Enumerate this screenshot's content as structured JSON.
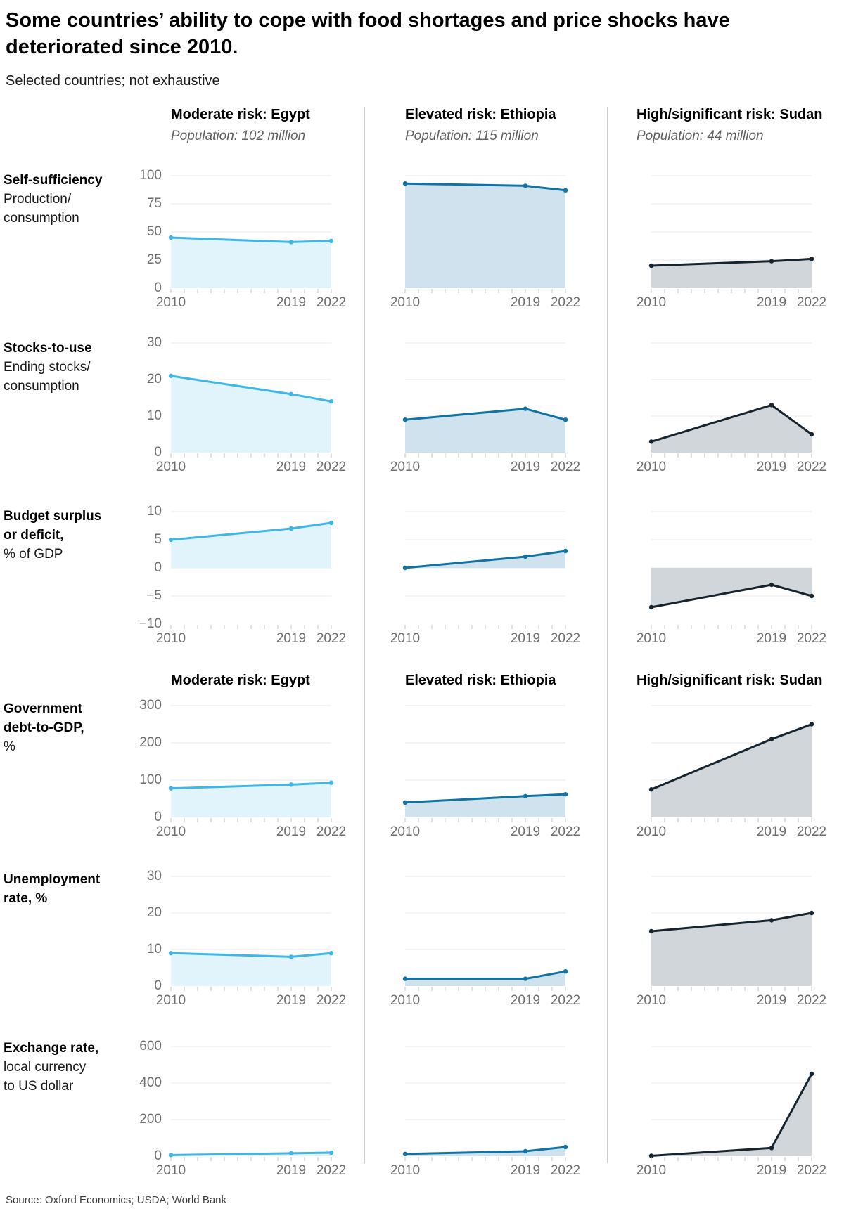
{
  "title": "Some countries’ ability to cope with food shortages and price shocks have deteriorated since 2010.",
  "subtitle": "Selected countries; not exhaustive",
  "source": "Source: Oxford Economics; USDA; World Bank",
  "years": [
    "2010",
    "2019",
    "2022"
  ],
  "palette": {
    "grid": "#e9e9e9",
    "tick": "#c6c6c6",
    "axis_text": "#6e6e6e",
    "separator": "#cccccc",
    "heading": "#000000",
    "population_text": "#606060"
  },
  "columns": [
    {
      "header": "Moderate risk: Egypt",
      "population": "Population: 102 million",
      "line_color": "#3eb6e8",
      "fill_color": "#e1f4fb"
    },
    {
      "header": "Elevated risk: Ethiopia",
      "population": "Population: 115 million",
      "line_color": "#0f74a3",
      "fill_color": "#cfe2ee"
    },
    {
      "header": "High/significant risk: Sudan",
      "population": "Population: 44 million",
      "line_color": "#16242f",
      "fill_color": "#d0d6d9"
    }
  ],
  "chart_data": [
    {
      "type": "area",
      "label_bold_lines": [
        "Self-sufficiency"
      ],
      "label_lines": [
        "Production/",
        "consumption"
      ],
      "x": [
        "2010",
        "2019",
        "2022"
      ],
      "ylim": [
        0,
        100
      ],
      "yticks": [
        0,
        25,
        50,
        75,
        100
      ],
      "series": [
        {
          "name": "Egypt",
          "values": [
            45,
            41,
            42
          ]
        },
        {
          "name": "Ethiopia",
          "values": [
            93,
            91,
            87
          ]
        },
        {
          "name": "Sudan",
          "values": [
            20,
            24,
            26
          ]
        }
      ]
    },
    {
      "type": "area",
      "label_bold_lines": [
        "Stocks-to-use"
      ],
      "label_lines": [
        "Ending stocks/",
        "consumption"
      ],
      "x": [
        "2010",
        "2019",
        "2022"
      ],
      "ylim": [
        0,
        30
      ],
      "yticks": [
        0,
        10,
        20,
        30
      ],
      "series": [
        {
          "name": "Egypt",
          "values": [
            21,
            16,
            14
          ]
        },
        {
          "name": "Ethiopia",
          "values": [
            9,
            12,
            9
          ]
        },
        {
          "name": "Sudan",
          "values": [
            3,
            13,
            5
          ]
        }
      ]
    },
    {
      "type": "area",
      "label_bold_lines": [
        "Budget surplus",
        "or deficit,"
      ],
      "label_lines": [
        "% of GDP"
      ],
      "x": [
        "2010",
        "2019",
        "2022"
      ],
      "ylim": [
        -10,
        10
      ],
      "yticks": [
        -10,
        -5,
        0,
        5,
        10
      ],
      "series": [
        {
          "name": "Egypt",
          "values": [
            5,
            7,
            8
          ]
        },
        {
          "name": "Ethiopia",
          "values": [
            0,
            2,
            3
          ]
        },
        {
          "name": "Sudan",
          "values": [
            -7,
            -3,
            -5
          ]
        }
      ]
    },
    {
      "type": "area",
      "label_bold_lines": [
        "Government",
        "debt-to-GDP,"
      ],
      "label_lines": [
        "%"
      ],
      "x": [
        "2010",
        "2019",
        "2022"
      ],
      "ylim": [
        0,
        300
      ],
      "yticks": [
        0,
        100,
        200,
        300
      ],
      "series": [
        {
          "name": "Egypt",
          "values": [
            78,
            88,
            93
          ]
        },
        {
          "name": "Ethiopia",
          "values": [
            40,
            57,
            62
          ]
        },
        {
          "name": "Sudan",
          "values": [
            75,
            210,
            250
          ]
        }
      ]
    },
    {
      "type": "area",
      "label_bold_lines": [
        "Unemployment",
        "rate, %"
      ],
      "label_lines": [],
      "x": [
        "2010",
        "2019",
        "2022"
      ],
      "ylim": [
        0,
        30
      ],
      "yticks": [
        0,
        10,
        20,
        30
      ],
      "series": [
        {
          "name": "Egypt",
          "values": [
            9,
            8,
            9
          ]
        },
        {
          "name": "Ethiopia",
          "values": [
            2,
            2,
            4
          ]
        },
        {
          "name": "Sudan",
          "values": [
            15,
            18,
            20
          ]
        }
      ]
    },
    {
      "type": "area",
      "label_bold_lines": [
        "Exchange rate,"
      ],
      "label_lines": [
        "local currency",
        "to US dollar"
      ],
      "x": [
        "2010",
        "2019",
        "2022"
      ],
      "ylim": [
        0,
        600
      ],
      "yticks": [
        0,
        200,
        400,
        600
      ],
      "series": [
        {
          "name": "Egypt",
          "values": [
            6,
            16,
            19
          ]
        },
        {
          "name": "Ethiopia",
          "values": [
            12,
            27,
            50
          ]
        },
        {
          "name": "Sudan",
          "values": [
            2,
            45,
            450
          ]
        }
      ]
    }
  ]
}
